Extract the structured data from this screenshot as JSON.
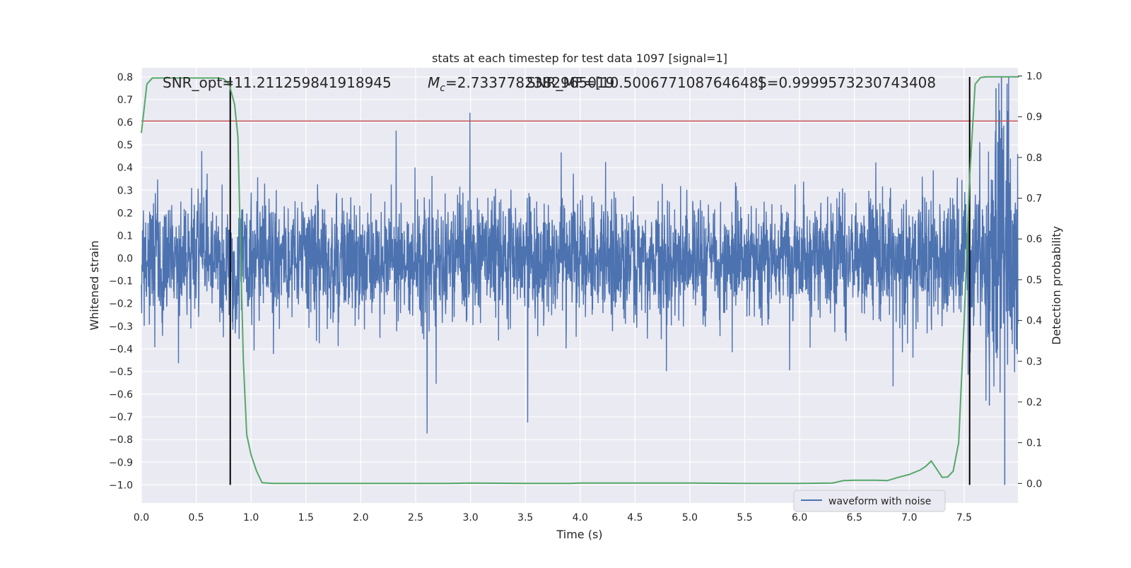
{
  "chart_data": {
    "type": "line",
    "title": "stats at each timestep for test data 1097 [signal=1]",
    "xlabel": "Time (s)",
    "ylabel": "Whitened strain",
    "y2label": "Detection probability",
    "xlim": [
      0.0,
      7.99
    ],
    "ylim": [
      -1.08,
      0.84
    ],
    "y2lim": [
      -0.048,
      1.02
    ],
    "x_ticks": [
      "0.0",
      "0.5",
      "1.0",
      "1.5",
      "2.0",
      "2.5",
      "3.0",
      "3.5",
      "4.0",
      "4.5",
      "5.0",
      "5.5",
      "6.0",
      "6.5",
      "7.0",
      "7.5"
    ],
    "y_ticks": [
      "0.8",
      "0.7",
      "0.6",
      "0.5",
      "0.4",
      "0.3",
      "0.2",
      "0.1",
      "0.0",
      "−0.1",
      "−0.2",
      "−0.3",
      "−0.4",
      "−0.5",
      "−0.6",
      "−0.7",
      "−0.8",
      "−0.9",
      "−1.0"
    ],
    "y2_ticks": [
      "1.0",
      "0.9",
      "0.8",
      "0.7",
      "0.6",
      "0.5",
      "0.4",
      "0.3",
      "0.2",
      "0.1",
      "0.0"
    ],
    "grid": true,
    "legend_position": "lower-right",
    "legend": [
      "waveform with noise"
    ],
    "annotations": {
      "snr_opt": "SNR_opt=11.211259841918945",
      "mc": "=2.7337782382965019",
      "mc_prefix": "M",
      "mc_sub": "c",
      "snr_mf": "SNR_MF=[10.500677108764648]",
      "s": "S=0.9999573230743408"
    },
    "series": [
      {
        "name": "waveform with noise",
        "color": "#4c72b0",
        "description": "noisy whitened strain, amplitude mostly within [-0.3, 0.3] with spikes to about ±0.55; ends with a burst reaching 0.8 and -1.0 near t=7.85"
      },
      {
        "color": "#55a868",
        "axis": "right",
        "x": [
          0.0,
          0.05,
          0.1,
          0.2,
          0.3,
          0.4,
          0.5,
          0.6,
          0.7,
          0.75,
          0.8,
          0.85,
          0.88,
          0.9,
          0.93,
          0.96,
          1.0,
          1.05,
          1.1,
          1.2,
          1.5,
          2.0,
          2.5,
          2.8,
          3.0,
          3.5,
          3.9,
          4.0,
          4.5,
          5.0,
          5.5,
          6.0,
          6.3,
          6.4,
          6.5,
          6.7,
          6.8,
          6.9,
          7.0,
          7.1,
          7.15,
          7.2,
          7.25,
          7.3,
          7.35,
          7.4,
          7.45,
          7.5,
          7.55,
          7.6,
          7.65,
          7.7,
          8.0
        ],
        "y": [
          0.86,
          0.98,
          0.995,
          0.995,
          0.995,
          0.995,
          0.995,
          0.995,
          0.995,
          0.993,
          0.98,
          0.93,
          0.85,
          0.62,
          0.3,
          0.12,
          0.07,
          0.03,
          0.002,
          0.0,
          0.0,
          0.0,
          0.0,
          0.0,
          0.001,
          0.0,
          0.0,
          0.001,
          0.001,
          0.001,
          0.0,
          0.0,
          0.001,
          0.007,
          0.008,
          0.008,
          0.007,
          0.015,
          0.022,
          0.033,
          0.042,
          0.055,
          0.035,
          0.015,
          0.016,
          0.03,
          0.1,
          0.4,
          0.75,
          0.98,
          0.996,
          0.998,
          0.998
        ]
      },
      {
        "color": "#c44e52",
        "type": "hline",
        "y": 0.605
      },
      {
        "color": "#000000",
        "type": "vline",
        "x": [
          0.81,
          7.55
        ]
      }
    ]
  }
}
